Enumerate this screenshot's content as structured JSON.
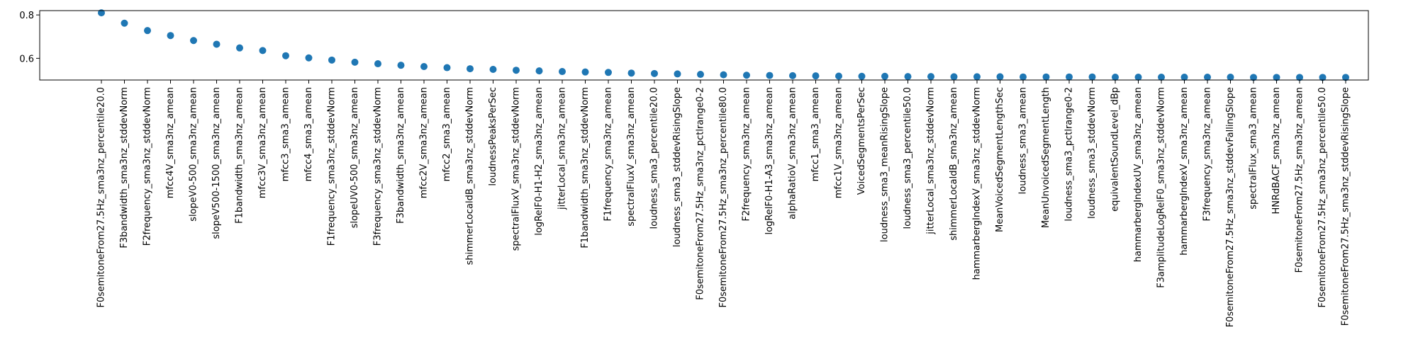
{
  "chart_data": {
    "type": "scatter",
    "title": "",
    "xlabel": "",
    "ylabel": "",
    "ylim": [
      0.5,
      0.82
    ],
    "yticks": [
      0.6,
      0.8
    ],
    "ytick_labels": [
      "0.6",
      "0.8"
    ],
    "grid": false,
    "marker_color": "#1f77b4",
    "categories": [
      "F0semitoneFrom27.5Hz_sma3nz_percentile20.0",
      "F3bandwidth_sma3nz_stddevNorm",
      "F2frequency_sma3nz_stddevNorm",
      "mfcc4V_sma3nz_amean",
      "slopeV0-500_sma3nz_amean",
      "slopeV500-1500_sma3nz_amean",
      "F1bandwidth_sma3nz_amean",
      "mfcc3V_sma3nz_amean",
      "mfcc3_sma3_amean",
      "mfcc4_sma3_amean",
      "F1frequency_sma3nz_stddevNorm",
      "slopeUV0-500_sma3nz_amean",
      "F3frequency_sma3nz_stddevNorm",
      "F3bandwidth_sma3nz_amean",
      "mfcc2V_sma3nz_amean",
      "mfcc2_sma3_amean",
      "shimmerLocaldB_sma3nz_stddevNorm",
      "loudnessPeaksPerSec",
      "spectralFluxV_sma3nz_stddevNorm",
      "logRelF0-H1-H2_sma3nz_amean",
      "jitterLocal_sma3nz_amean",
      "F1bandwidth_sma3nz_stddevNorm",
      "F1frequency_sma3nz_amean",
      "spectralFluxV_sma3nz_amean",
      "loudness_sma3_percentile20.0",
      "loudness_sma3_stddevRisingSlope",
      "F0semitoneFrom27.5Hz_sma3nz_pctlrange0-2",
      "F0semitoneFrom27.5Hz_sma3nz_percentile80.0",
      "F2frequency_sma3nz_amean",
      "logRelF0-H1-A3_sma3nz_amean",
      "alphaRatioV_sma3nz_amean",
      "mfcc1_sma3_amean",
      "mfcc1V_sma3nz_amean",
      "VoicedSegmentsPerSec",
      "loudness_sma3_meanRisingSlope",
      "loudness_sma3_percentile50.0",
      "jitterLocal_sma3nz_stddevNorm",
      "shimmerLocaldB_sma3nz_amean",
      "hammarbergIndexV_sma3nz_stddevNorm",
      "MeanVoicedSegmentLengthSec",
      "loudness_sma3_amean",
      "MeanUnvoicedSegmentLength",
      "loudness_sma3_pctlrange0-2",
      "loudness_sma3_stddevNorm",
      "equivalentSoundLevel_dBp",
      "hammarbergIndexUV_sma3nz_amean",
      "F3amplitudeLogRelF0_sma3nz_stddevNorm",
      "hammarbergIndexV_sma3nz_amean",
      "F3frequency_sma3nz_amean",
      "F0semitoneFrom27.5Hz_sma3nz_stddevFallingSlope",
      "spectralFlux_sma3_amean",
      "HNRdBACF_sma3nz_amean",
      "F0semitoneFrom27.5Hz_sma3nz_amean",
      "F0semitoneFrom27.5Hz_sma3nz_percentile50.0",
      "F0semitoneFrom27.5Hz_sma3nz_stddevRisingSlope"
    ],
    "values": [
      0.81,
      0.762,
      0.728,
      0.705,
      0.682,
      0.665,
      0.648,
      0.636,
      0.612,
      0.602,
      0.592,
      0.582,
      0.575,
      0.568,
      0.562,
      0.557,
      0.552,
      0.549,
      0.545,
      0.542,
      0.539,
      0.537,
      0.535,
      0.532,
      0.53,
      0.528,
      0.526,
      0.524,
      0.522,
      0.521,
      0.52,
      0.519,
      0.518,
      0.517,
      0.517,
      0.516,
      0.516,
      0.515,
      0.515,
      0.515,
      0.514,
      0.514,
      0.514,
      0.514,
      0.513,
      0.513,
      0.513,
      0.513,
      0.513,
      0.513,
      0.512,
      0.512,
      0.512,
      0.512,
      0.512
    ]
  }
}
